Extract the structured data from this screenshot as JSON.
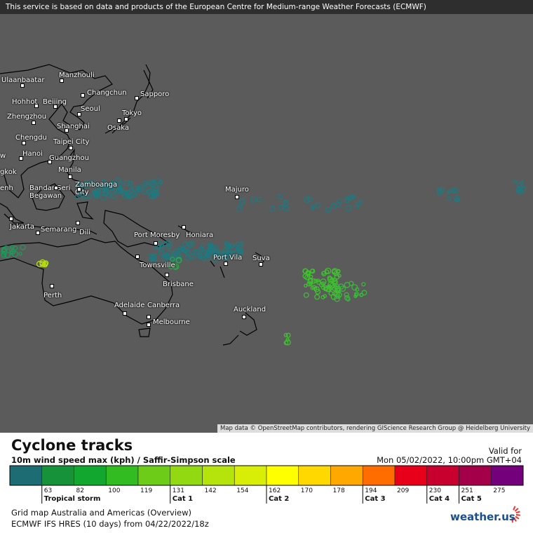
{
  "header": {
    "notice": "This service is based on data and products of the European Centre for Medium-range Weather Forecasts (ECMWF)"
  },
  "map": {
    "cities": [
      "Ulaanbaatar",
      "Manzhouli",
      "Changchun",
      "Sapporo",
      "Hohhot",
      "Beijing",
      "Seoul",
      "Tokyo",
      "Zhengzhou",
      "Shanghai",
      "Osaka",
      "Chengdu",
      "Taipei City",
      "w",
      "Hanoi",
      "Guangzhou",
      "gkok",
      "Manila",
      "enh",
      "Bandar Seri Begawan",
      "Zamboanga City",
      "Majuro",
      "Jakarta",
      "Semarang",
      "Dili",
      "Port Moresby",
      "Honiara",
      "Port Vila",
      "Suva",
      "Townsville",
      "Perth",
      "Brisbane",
      "Adelaide",
      "Canberra",
      "Melbourne",
      "Auckland"
    ],
    "attribution": "Map data © OpenStreetMap contributors, rendering GIScience Research Group @ Heidelberg University"
  },
  "legend": {
    "title": "Cyclone tracks",
    "subtitle": "10m wind speed max (kph) / Saffir-Simpson scale",
    "valid_label": "Valid for",
    "valid_time": "Mon 05/02/2022, 10:00pm GMT+04",
    "colors": [
      "#1d6b73",
      "#15923a",
      "#12a830",
      "#33bc22",
      "#6ccc17",
      "#93d912",
      "#b4e40c",
      "#d8ee06",
      "#ffff00",
      "#ffd800",
      "#ffa800",
      "#ff6c00",
      "#e8001a",
      "#c8002e",
      "#a4004a",
      "#74007c"
    ],
    "ticks": [
      63,
      82,
      100,
      119,
      131,
      142,
      154,
      162,
      170,
      178,
      194,
      209,
      230,
      251,
      275
    ],
    "categories": [
      "Tropical storm",
      "Cat 1",
      "Cat 2",
      "Cat 3",
      "Cat 4",
      "Cat 5"
    ]
  },
  "footer": {
    "grid_map": "Grid map Australia and Americas (Overview)",
    "model_run": "ECMWF IFS HRES (10 days) from 04/22/2022/18z",
    "logo": "weather.us"
  }
}
